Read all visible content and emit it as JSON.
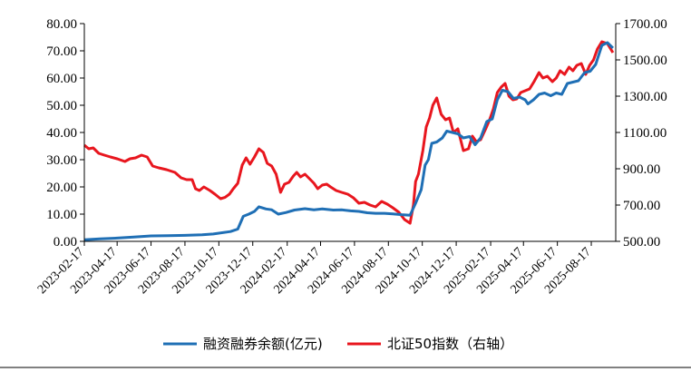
{
  "chart_data": {
    "type": "line",
    "title": "",
    "xlabel": "",
    "ylabel_left": "",
    "ylabel_right": "",
    "left_axis": {
      "ylim": [
        0,
        80
      ],
      "ticks": [
        "0.00",
        "10.00",
        "20.00",
        "30.00",
        "40.00",
        "50.00",
        "60.00",
        "70.00",
        "80.00"
      ]
    },
    "right_axis": {
      "ylim": [
        500,
        1700
      ],
      "ticks": [
        "500.00",
        "700.00",
        "900.00",
        "1100.00",
        "1300.00",
        "1500.00",
        "1700.00"
      ]
    },
    "x_range": [
      "2023-02-17",
      "2025-09-30"
    ],
    "x_tick_labels": [
      "2023-02-17",
      "2023-04-17",
      "2023-06-17",
      "2023-08-17",
      "2023-10-17",
      "2023-12-17",
      "2024-02-17",
      "2024-04-17",
      "2024-06-17",
      "2024-08-17",
      "2024-10-17",
      "2024-12-17",
      "2025-02-17",
      "2025-04-17",
      "2025-06-17",
      "2025-08-17"
    ],
    "grid": false,
    "legend_position": "bottom",
    "series": [
      {
        "name": "融资融券余额(亿元)",
        "axis": "left",
        "color": "#1F6FB5",
        "points": [
          [
            "2023-02-17",
            0.6
          ],
          [
            "2023-03-17",
            0.9
          ],
          [
            "2023-04-17",
            1.2
          ],
          [
            "2023-05-17",
            1.6
          ],
          [
            "2023-06-17",
            2.0
          ],
          [
            "2023-07-17",
            2.1
          ],
          [
            "2023-08-17",
            2.2
          ],
          [
            "2023-09-17",
            2.4
          ],
          [
            "2023-10-07",
            2.7
          ],
          [
            "2023-11-07",
            3.6
          ],
          [
            "2023-11-20",
            4.5
          ],
          [
            "2023-11-30",
            9.2
          ],
          [
            "2023-12-10",
            10.0
          ],
          [
            "2023-12-20",
            11.0
          ],
          [
            "2023-12-28",
            12.7
          ],
          [
            "2024-01-10",
            11.9
          ],
          [
            "2024-01-20",
            11.6
          ],
          [
            "2024-02-01",
            10.0
          ],
          [
            "2024-02-15",
            10.6
          ],
          [
            "2024-03-01",
            11.5
          ],
          [
            "2024-03-20",
            12.0
          ],
          [
            "2024-04-05",
            11.6
          ],
          [
            "2024-04-20",
            11.9
          ],
          [
            "2024-05-10",
            11.5
          ],
          [
            "2024-05-25",
            11.6
          ],
          [
            "2024-06-10",
            11.2
          ],
          [
            "2024-06-25",
            11.0
          ],
          [
            "2024-07-10",
            10.5
          ],
          [
            "2024-07-25",
            10.3
          ],
          [
            "2024-08-10",
            10.3
          ],
          [
            "2024-08-25",
            10.1
          ],
          [
            "2024-09-10",
            9.8
          ],
          [
            "2024-09-25",
            9.6
          ],
          [
            "2024-10-05",
            14.0
          ],
          [
            "2024-10-15",
            19.0
          ],
          [
            "2024-10-22",
            28.0
          ],
          [
            "2024-10-28",
            30.0
          ],
          [
            "2024-11-03",
            36.0
          ],
          [
            "2024-11-12",
            36.5
          ],
          [
            "2024-11-22",
            38.0
          ],
          [
            "2024-11-30",
            40.5
          ],
          [
            "2024-12-10",
            40.0
          ],
          [
            "2024-12-20",
            39.5
          ],
          [
            "2024-12-30",
            38.0
          ],
          [
            "2025-01-10",
            38.5
          ],
          [
            "2025-01-20",
            35.5
          ],
          [
            "2025-01-30",
            38.0
          ],
          [
            "2025-02-10",
            44.0
          ],
          [
            "2025-02-20",
            45.0
          ],
          [
            "2025-03-01",
            52.0
          ],
          [
            "2025-03-10",
            55.5
          ],
          [
            "2025-03-20",
            55.0
          ],
          [
            "2025-03-30",
            52.5
          ],
          [
            "2025-04-10",
            53.0
          ],
          [
            "2025-04-20",
            52.0
          ],
          [
            "2025-04-25",
            50.5
          ],
          [
            "2025-05-05",
            52.0
          ],
          [
            "2025-05-15",
            54.0
          ],
          [
            "2025-05-25",
            54.5
          ],
          [
            "2025-06-05",
            53.5
          ],
          [
            "2025-06-15",
            54.5
          ],
          [
            "2025-06-25",
            54.0
          ],
          [
            "2025-07-05",
            58.0
          ],
          [
            "2025-07-15",
            58.5
          ],
          [
            "2025-07-25",
            59.0
          ],
          [
            "2025-08-05",
            62.0
          ],
          [
            "2025-08-15",
            62.5
          ],
          [
            "2025-08-25",
            65.0
          ],
          [
            "2025-09-05",
            72.0
          ],
          [
            "2025-09-15",
            73.0
          ],
          [
            "2025-09-25",
            71.0
          ]
        ]
      },
      {
        "name": "北证50指数（右轴）",
        "axis": "right",
        "color": "#E8161E",
        "points": [
          [
            "2023-02-17",
            1030
          ],
          [
            "2023-02-25",
            1010
          ],
          [
            "2023-03-05",
            1015
          ],
          [
            "2023-03-15",
            985
          ],
          [
            "2023-03-25",
            975
          ],
          [
            "2023-04-05",
            965
          ],
          [
            "2023-04-17",
            955
          ],
          [
            "2023-05-01",
            940
          ],
          [
            "2023-05-10",
            955
          ],
          [
            "2023-05-20",
            960
          ],
          [
            "2023-05-31",
            975
          ],
          [
            "2023-06-10",
            965
          ],
          [
            "2023-06-20",
            915
          ],
          [
            "2023-07-01",
            905
          ],
          [
            "2023-07-15",
            895
          ],
          [
            "2023-07-30",
            880
          ],
          [
            "2023-08-10",
            850
          ],
          [
            "2023-08-20",
            840
          ],
          [
            "2023-08-30",
            840
          ],
          [
            "2023-09-05",
            790
          ],
          [
            "2023-09-12",
            780
          ],
          [
            "2023-09-20",
            800
          ],
          [
            "2023-10-01",
            780
          ],
          [
            "2023-10-10",
            760
          ],
          [
            "2023-10-20",
            735
          ],
          [
            "2023-10-28",
            742
          ],
          [
            "2023-11-05",
            760
          ],
          [
            "2023-11-12",
            790
          ],
          [
            "2023-11-20",
            820
          ],
          [
            "2023-11-28",
            920
          ],
          [
            "2023-12-05",
            960
          ],
          [
            "2023-12-12",
            925
          ],
          [
            "2023-12-20",
            965
          ],
          [
            "2023-12-28",
            1010
          ],
          [
            "2024-01-05",
            990
          ],
          [
            "2024-01-12",
            930
          ],
          [
            "2024-01-20",
            915
          ],
          [
            "2024-01-28",
            870
          ],
          [
            "2024-02-05",
            770
          ],
          [
            "2024-02-12",
            815
          ],
          [
            "2024-02-20",
            825
          ],
          [
            "2024-02-28",
            860
          ],
          [
            "2024-03-05",
            880
          ],
          [
            "2024-03-12",
            855
          ],
          [
            "2024-03-20",
            870
          ],
          [
            "2024-03-28",
            845
          ],
          [
            "2024-04-05",
            820
          ],
          [
            "2024-04-12",
            790
          ],
          [
            "2024-04-20",
            810
          ],
          [
            "2024-04-28",
            815
          ],
          [
            "2024-05-05",
            800
          ],
          [
            "2024-05-15",
            780
          ],
          [
            "2024-05-25",
            770
          ],
          [
            "2024-06-05",
            760
          ],
          [
            "2024-06-15",
            740
          ],
          [
            "2024-06-25",
            710
          ],
          [
            "2024-07-05",
            715
          ],
          [
            "2024-07-15",
            700
          ],
          [
            "2024-07-25",
            690
          ],
          [
            "2024-08-05",
            720
          ],
          [
            "2024-08-15",
            705
          ],
          [
            "2024-08-25",
            685
          ],
          [
            "2024-09-05",
            660
          ],
          [
            "2024-09-15",
            620
          ],
          [
            "2024-09-25",
            600
          ],
          [
            "2024-10-01",
            700
          ],
          [
            "2024-10-05",
            830
          ],
          [
            "2024-10-10",
            870
          ],
          [
            "2024-10-18",
            1000
          ],
          [
            "2024-10-24",
            1130
          ],
          [
            "2024-10-30",
            1180
          ],
          [
            "2024-11-05",
            1250
          ],
          [
            "2024-11-12",
            1290
          ],
          [
            "2024-11-20",
            1200
          ],
          [
            "2024-11-28",
            1170
          ],
          [
            "2024-12-05",
            1180
          ],
          [
            "2024-12-12",
            1100
          ],
          [
            "2024-12-20",
            1120
          ],
          [
            "2024-12-30",
            1000
          ],
          [
            "2025-01-08",
            1010
          ],
          [
            "2025-01-15",
            1080
          ],
          [
            "2025-01-22",
            1050
          ],
          [
            "2025-01-30",
            1060
          ],
          [
            "2025-02-08",
            1120
          ],
          [
            "2025-02-15",
            1170
          ],
          [
            "2025-02-22",
            1230
          ],
          [
            "2025-03-01",
            1320
          ],
          [
            "2025-03-08",
            1350
          ],
          [
            "2025-03-15",
            1370
          ],
          [
            "2025-03-22",
            1300
          ],
          [
            "2025-03-29",
            1280
          ],
          [
            "2025-04-05",
            1285
          ],
          [
            "2025-04-12",
            1320
          ],
          [
            "2025-04-20",
            1330
          ],
          [
            "2025-04-28",
            1340
          ],
          [
            "2025-05-06",
            1380
          ],
          [
            "2025-05-15",
            1430
          ],
          [
            "2025-05-22",
            1400
          ],
          [
            "2025-05-30",
            1410
          ],
          [
            "2025-06-08",
            1380
          ],
          [
            "2025-06-15",
            1400
          ],
          [
            "2025-06-22",
            1440
          ],
          [
            "2025-06-30",
            1420
          ],
          [
            "2025-07-08",
            1460
          ],
          [
            "2025-07-15",
            1440
          ],
          [
            "2025-07-22",
            1470
          ],
          [
            "2025-07-30",
            1480
          ],
          [
            "2025-08-07",
            1420
          ],
          [
            "2025-08-14",
            1470
          ],
          [
            "2025-08-21",
            1500
          ],
          [
            "2025-08-28",
            1560
          ],
          [
            "2025-09-05",
            1600
          ],
          [
            "2025-09-15",
            1590
          ],
          [
            "2025-09-25",
            1540
          ]
        ]
      }
    ]
  }
}
